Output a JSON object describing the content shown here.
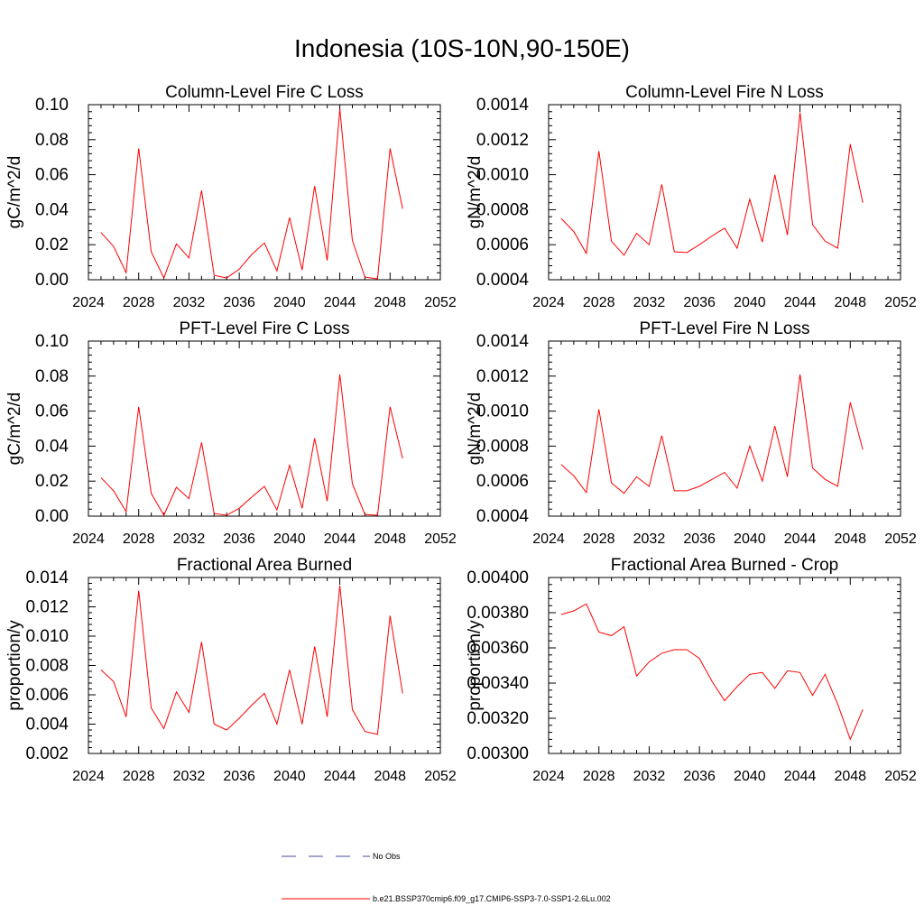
{
  "title": "Indonesia (10S-10N,90-150E)",
  "legend": {
    "placement": "bottom-center",
    "entries": [
      {
        "label": "No Obs",
        "color": "#4a4aa0",
        "style": "dashed"
      },
      {
        "label": "b.e21.BSSP370cmip6.f09_g17.CMIP6-SSP3-7.0-SSP1-2.6Lu.002",
        "color": "#ff0000",
        "style": "solid"
      }
    ]
  },
  "chart_data": [
    {
      "type": "line",
      "title": "Column-Level Fire C Loss",
      "ylabel": "gC/m^2/d",
      "xlim": [
        2024,
        2052
      ],
      "ylim": [
        0,
        0.1
      ],
      "xticks": [
        "2024",
        "2028",
        "2032",
        "2036",
        "2040",
        "2044",
        "2048",
        "2052"
      ],
      "yticks": [
        "0.00",
        "0.02",
        "0.04",
        "0.06",
        "0.08",
        "0.10"
      ],
      "series": [
        {
          "color": "#ff0000",
          "x": [
            2025,
            2026,
            2027,
            2028,
            2029,
            2030,
            2031,
            2032,
            2033,
            2034,
            2035,
            2036,
            2037,
            2038,
            2039,
            2040,
            2041,
            2042,
            2043,
            2044,
            2045,
            2046,
            2047,
            2048,
            2049
          ],
          "y": [
            0.027,
            0.019,
            0.004,
            0.075,
            0.016,
            0.001,
            0.0205,
            0.0125,
            0.051,
            0.0025,
            0.001,
            0.006,
            0.0145,
            0.021,
            0.005,
            0.0355,
            0.0055,
            0.0535,
            0.011,
            0.0975,
            0.0225,
            0.0015,
            0.0005,
            0.075,
            0.0405
          ]
        }
      ]
    },
    {
      "type": "line",
      "title": "Column-Level Fire N Loss",
      "ylabel": "gN/m^2/d",
      "xlim": [
        2024,
        2052
      ],
      "ylim": [
        0.0004,
        0.0014
      ],
      "xticks": [
        "2024",
        "2028",
        "2032",
        "2036",
        "2040",
        "2044",
        "2048",
        "2052"
      ],
      "yticks": [
        "0.0004",
        "0.0006",
        "0.0008",
        "0.0010",
        "0.0012",
        "0.0014"
      ],
      "series": [
        {
          "color": "#ff0000",
          "x": [
            2025,
            2026,
            2027,
            2028,
            2029,
            2030,
            2031,
            2032,
            2033,
            2034,
            2035,
            2036,
            2037,
            2038,
            2039,
            2040,
            2041,
            2042,
            2043,
            2044,
            2045,
            2046,
            2047,
            2048,
            2049
          ],
          "y": [
            0.00075,
            0.000675,
            0.00055,
            0.001135,
            0.00062,
            0.00054,
            0.000665,
            0.0006,
            0.000945,
            0.00056,
            0.000555,
            0.0006,
            0.00065,
            0.000695,
            0.00058,
            0.00086,
            0.000615,
            0.001,
            0.000655,
            0.001355,
            0.000715,
            0.00062,
            0.00058,
            0.001175,
            0.00084
          ]
        }
      ]
    },
    {
      "type": "line",
      "title": "PFT-Level Fire C Loss",
      "ylabel": "gC/m^2/d",
      "xlim": [
        2024,
        2052
      ],
      "ylim": [
        0,
        0.1
      ],
      "xticks": [
        "2024",
        "2028",
        "2032",
        "2036",
        "2040",
        "2044",
        "2048",
        "2052"
      ],
      "yticks": [
        "0.00",
        "0.02",
        "0.04",
        "0.06",
        "0.08",
        "0.10"
      ],
      "series": [
        {
          "color": "#ff0000",
          "x": [
            2025,
            2026,
            2027,
            2028,
            2029,
            2030,
            2031,
            2032,
            2033,
            2034,
            2035,
            2036,
            2037,
            2038,
            2039,
            2040,
            2041,
            2042,
            2043,
            2044,
            2045,
            2046,
            2047,
            2048,
            2049
          ],
          "y": [
            0.022,
            0.0145,
            0.0025,
            0.0625,
            0.013,
            0.0005,
            0.0165,
            0.01,
            0.042,
            0.0015,
            0.0005,
            0.0045,
            0.011,
            0.017,
            0.0035,
            0.029,
            0.0045,
            0.0445,
            0.0085,
            0.081,
            0.0185,
            0.001,
            0.0005,
            0.0625,
            0.033
          ]
        }
      ]
    },
    {
      "type": "line",
      "title": "PFT-Level Fire N Loss",
      "ylabel": "gN/m^2/d",
      "xlim": [
        2024,
        2052
      ],
      "ylim": [
        0.0004,
        0.0014
      ],
      "xticks": [
        "2024",
        "2028",
        "2032",
        "2036",
        "2040",
        "2044",
        "2048",
        "2052"
      ],
      "yticks": [
        "0.0004",
        "0.0006",
        "0.0008",
        "0.0010",
        "0.0012",
        "0.0014"
      ],
      "series": [
        {
          "color": "#ff0000",
          "x": [
            2025,
            2026,
            2027,
            2028,
            2029,
            2030,
            2031,
            2032,
            2033,
            2034,
            2035,
            2036,
            2037,
            2038,
            2039,
            2040,
            2041,
            2042,
            2043,
            2044,
            2045,
            2046,
            2047,
            2048,
            2049
          ],
          "y": [
            0.000695,
            0.00063,
            0.000535,
            0.00101,
            0.00059,
            0.00053,
            0.000625,
            0.00057,
            0.00086,
            0.000545,
            0.000545,
            0.00057,
            0.00061,
            0.00065,
            0.00056,
            0.0008,
            0.0006,
            0.000915,
            0.000625,
            0.00121,
            0.000675,
            0.00061,
            0.00057,
            0.00105,
            0.00078
          ]
        }
      ]
    },
    {
      "type": "line",
      "title": "Fractional Area Burned",
      "ylabel": "proportion/y",
      "xlim": [
        2024,
        2052
      ],
      "ylim": [
        0.002,
        0.014
      ],
      "xticks": [
        "2024",
        "2028",
        "2032",
        "2036",
        "2040",
        "2044",
        "2048",
        "2052"
      ],
      "yticks": [
        "0.002",
        "0.004",
        "0.006",
        "0.008",
        "0.010",
        "0.012",
        "0.014"
      ],
      "series": [
        {
          "color": "#ff0000",
          "x": [
            2025,
            2026,
            2027,
            2028,
            2029,
            2030,
            2031,
            2032,
            2033,
            2034,
            2035,
            2036,
            2037,
            2038,
            2039,
            2040,
            2041,
            2042,
            2043,
            2044,
            2045,
            2046,
            2047,
            2048,
            2049
          ],
          "y": [
            0.0077,
            0.0069,
            0.0045,
            0.0131,
            0.0051,
            0.0037,
            0.0062,
            0.0048,
            0.0096,
            0.004,
            0.0036,
            0.0044,
            0.0053,
            0.0061,
            0.004,
            0.0077,
            0.004,
            0.0093,
            0.0045,
            0.01345,
            0.005,
            0.0035,
            0.0033,
            0.0114,
            0.0061
          ]
        }
      ]
    },
    {
      "type": "line",
      "title": "Fractional Area Burned - Crop",
      "ylabel": "proportion/y",
      "xlim": [
        2024,
        2052
      ],
      "ylim": [
        0.003,
        0.004
      ],
      "xticks": [
        "2024",
        "2028",
        "2032",
        "2036",
        "2040",
        "2044",
        "2048",
        "2052"
      ],
      "yticks": [
        "0.00300",
        "0.00320",
        "0.00340",
        "0.00360",
        "0.00380",
        "0.00400"
      ],
      "series": [
        {
          "color": "#ff0000",
          "x": [
            2025,
            2026,
            2027,
            2028,
            2029,
            2030,
            2031,
            2032,
            2033,
            2034,
            2035,
            2036,
            2037,
            2038,
            2039,
            2040,
            2041,
            2042,
            2043,
            2044,
            2045,
            2046,
            2047,
            2048,
            2049
          ],
          "y": [
            0.00379,
            0.00381,
            0.00385,
            0.00369,
            0.00367,
            0.00372,
            0.00344,
            0.00352,
            0.00357,
            0.00359,
            0.00359,
            0.00354,
            0.00341,
            0.0033,
            0.00338,
            0.00345,
            0.00346,
            0.00337,
            0.00347,
            0.00346,
            0.00333,
            0.00345,
            0.00328,
            0.00308,
            0.00325
          ]
        }
      ]
    }
  ]
}
